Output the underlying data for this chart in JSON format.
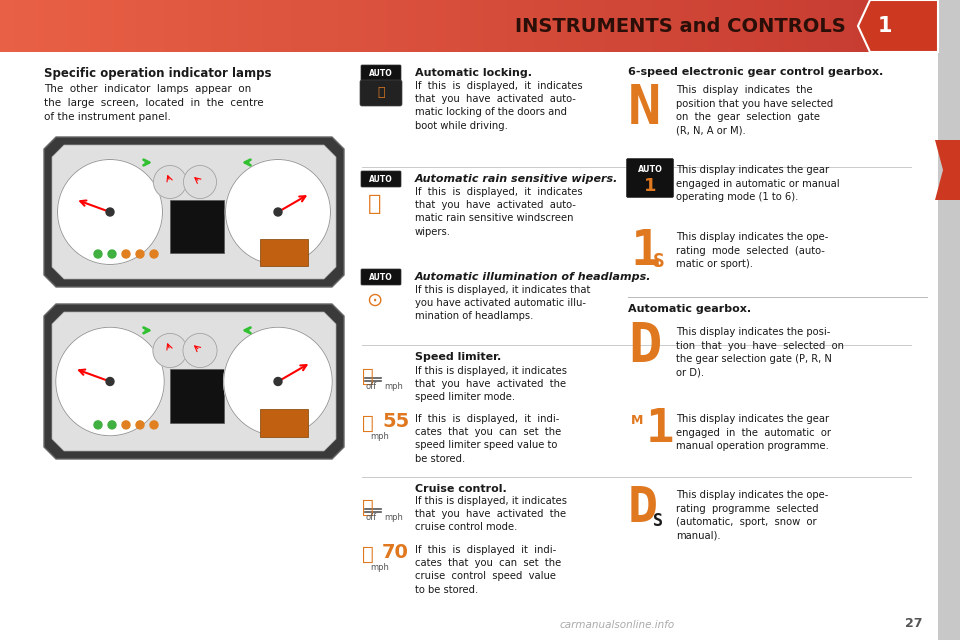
{
  "header_bg": "#d95f45",
  "header_text": "INSTRUMENTS and CONTROLS",
  "header_text_color": "#2a0e08",
  "page_bg": "#ffffff",
  "tab_color": "#cc3820",
  "tab_number": "1",
  "sidebar_bg": "#d8d8d8",
  "sidebar_marker_color": "#cc3820",
  "page_number": "27",
  "orange": "#e07820",
  "dark": "#1a1a1a",
  "mid_dark": "#444444",
  "light_line": "#cccccc",
  "watermark": "carmanualsonline.info",
  "section_title_left": "Specific operation indicator lamps",
  "section_body_left": "The  other  indicator  lamps  appear  on\nthe  large  screen,  located  in  the  centre\nof the instrument panel.",
  "section_title_right1": "6-speed electronic gear control gearbox.",
  "section_title_right2": "Automatic gearbox.",
  "auto_locking_title": "Automatic locking.",
  "auto_locking_body": "If  this  is  displayed,  it  indicates\nthat  you  have  activated  auto-\nmatic locking of the doors and\nboot while driving.",
  "auto_rain_title": "Automatic rain sensitive wipers.",
  "auto_rain_body": "If  this  is  displayed,  it  indicates\nthat  you  have  activated  auto-\nmatic rain sensitive windscreen\nwipers.",
  "auto_illum_title": "Automatic illumination of headlamps.",
  "auto_illum_body": "If this is displayed, it indicates that\nyou have activated automatic illu-\nmination of headlamps.",
  "speed_limiter_title": "Speed limiter.",
  "speed_limiter_body1": "If this is displayed, it indicates\nthat  you  have  activated  the\nspeed limiter mode.",
  "speed_limiter_body2": "If  this  is  displayed,  it  indi-\ncates  that  you  can  set  the\nspeed limiter speed value to\nbe stored.",
  "cruise_control_title": "Cruise control.",
  "cruise_control_body1": "If this is displayed, it indicates\nthat  you  have  activated  the\ncruise control mode.",
  "cruise_control_body2": "If  this  is  displayed  it  indi-\ncates  that  you  can  set  the\ncruise  control  speed  value\nto be stored.",
  "n_gear_text": "This  display  indicates  the\nposition that you have selected\non  the  gear  selection  gate\n(R, N, A or M).",
  "auto1_text": "This display indicates the gear\nengaged in automatic or manual\noperating mode (1 to 6).",
  "mode1s_text": "This display indicates the ope-\nrating  mode  selected  (auto-\nmatic or sport).",
  "d_gear_text": "This display indicates the posi-\ntion  that  you  have  selected  on\nthe gear selection gate (P, R, N\nor D).",
  "m1_text": "This display indicates the gear\nengaged  in  the  automatic  or\nmanual operation programme.",
  "ds_text": "This display indicates the ope-\nrating  programme  selected\n(automatic,  sport,  snow  or\nmanual)."
}
